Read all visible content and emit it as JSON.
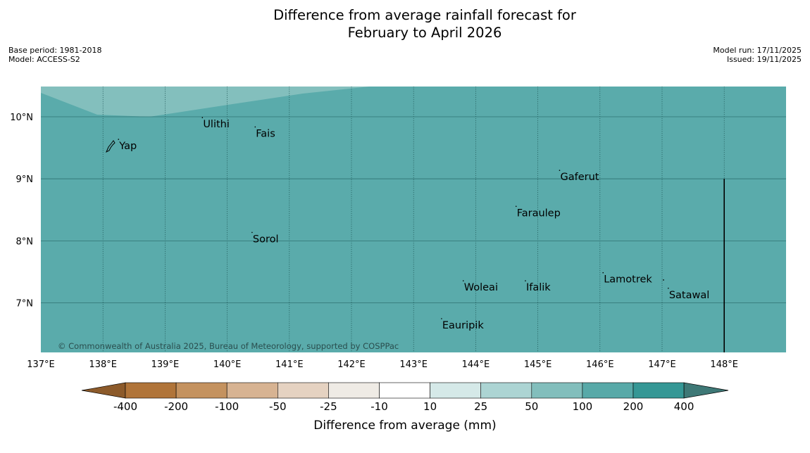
{
  "title": {
    "line1": "Difference from average rainfall forecast for",
    "line2": "February to April 2026"
  },
  "meta_left": {
    "base_period": "Base period: 1981-2018",
    "model": "Model: ACCESS-S2"
  },
  "meta_right": {
    "model_run": "Model run: 17/11/2025",
    "issued": "Issued: 19/11/2025"
  },
  "map": {
    "lon_range": [
      137,
      149
    ],
    "lat_range": [
      6.2,
      10.5
    ],
    "lon_ticks": [
      "137°E",
      "138°E",
      "139°E",
      "140°E",
      "141°E",
      "142°E",
      "143°E",
      "144°E",
      "145°E",
      "146°E",
      "147°E",
      "148°E"
    ],
    "lat_ticks": [
      "10°N",
      "9°N",
      "8°N",
      "7°N"
    ],
    "lon_tick_values": [
      137,
      138,
      139,
      140,
      141,
      142,
      143,
      144,
      145,
      146,
      147,
      148
    ],
    "lat_tick_values": [
      10,
      9,
      8,
      7
    ],
    "colors": {
      "main_fill": "#5aabab",
      "upper_fill": "#83bfbd"
    },
    "places": [
      {
        "name": "Yap",
        "lon": 138.25,
        "lat": 9.5
      },
      {
        "name": "Ulithi",
        "lon": 139.6,
        "lat": 9.85
      },
      {
        "name": "Fais",
        "lon": 140.45,
        "lat": 9.7
      },
      {
        "name": "Gaferut",
        "lon": 145.35,
        "lat": 9.0
      },
      {
        "name": "Faraulep",
        "lon": 144.65,
        "lat": 8.42
      },
      {
        "name": "Sorol",
        "lon": 140.4,
        "lat": 8.0
      },
      {
        "name": "Lamotrek",
        "lon": 146.05,
        "lat": 7.35
      },
      {
        "name": "Satawal",
        "lon": 147.1,
        "lat": 7.1
      },
      {
        "name": "Woleai",
        "lon": 143.8,
        "lat": 7.22
      },
      {
        "name": "Ifalik",
        "lon": 144.8,
        "lat": 7.22
      },
      {
        "name": "Eauripik",
        "lon": 143.45,
        "lat": 6.61
      }
    ],
    "boundary_line": {
      "lon": 148.0,
      "lat_top": 9.0
    },
    "copyright": "© Commonwealth of Australia 2025, Bureau of Meteorology, supported by COSPPac"
  },
  "colorbar": {
    "labels": [
      "-400",
      "-200",
      "-100",
      "-50",
      "-25",
      "-10",
      "10",
      "25",
      "50",
      "100",
      "200",
      "400"
    ],
    "colors": [
      "#b07439",
      "#c4925f",
      "#d7b392",
      "#e5d2c1",
      "#efebe5",
      "#ffffff",
      "#d5e9e8",
      "#acd4d3",
      "#82bebc",
      "#58a9a8",
      "#359795"
    ],
    "extend_low_color": "#8c5a2a",
    "extend_high_color": "#3e7876",
    "title": "Difference from average (mm)"
  }
}
